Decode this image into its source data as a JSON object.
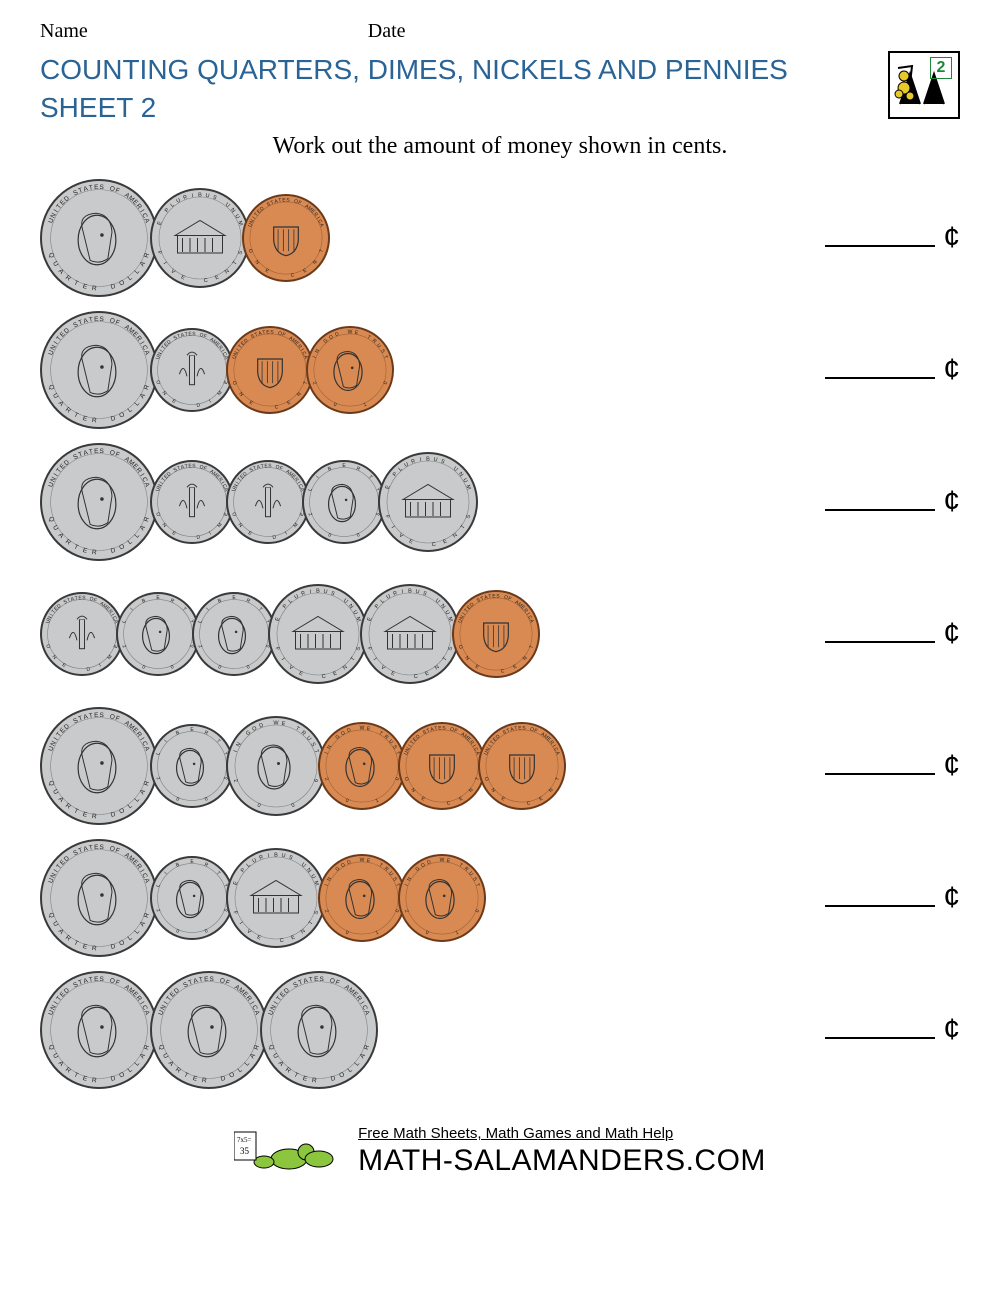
{
  "header": {
    "name_label": "Name",
    "date_label": "Date"
  },
  "title_line1": "COUNTING QUARTERS, DIMES, NICKELS AND PENNIES",
  "title_line2": "SHEET 2",
  "grade_badge": "2",
  "instructions": "Work out the amount of money shown in cents.",
  "cent_symbol": "¢",
  "coin_defs": {
    "quarter": {
      "diameter": 118,
      "color": "#c9cacb",
      "border": "#3a3a3a",
      "top_text": "UNITED STATES OF AMERICA",
      "bottom_text": "QUARTER DOLLAR",
      "face": "head"
    },
    "dime": {
      "diameter": 84,
      "color": "#c9cacb",
      "border": "#3a3a3a",
      "top_text": "UNITED STATES OF AMERICA",
      "bottom_text": "ONE DIME",
      "face": "torch"
    },
    "dime_head": {
      "diameter": 84,
      "color": "#c9cacb",
      "border": "#3a3a3a",
      "top_text": "LIBERTY",
      "bottom_text": "2005",
      "face": "head"
    },
    "nickel": {
      "diameter": 100,
      "color": "#c9cacb",
      "border": "#3a3a3a",
      "top_text": "E PLURIBUS UNUM",
      "bottom_text": "FIVE CENTS",
      "face": "building"
    },
    "nickel_head": {
      "diameter": 100,
      "color": "#c9cacb",
      "border": "#3a3a3a",
      "top_text": "IN GOD WE TRUST",
      "bottom_text": "2006",
      "face": "head"
    },
    "penny": {
      "diameter": 88,
      "color": "#d98a52",
      "border": "#6b3a1a",
      "top_text": "UNITED STATES OF AMERICA",
      "bottom_text": "ONE CENT",
      "face": "shield"
    },
    "penny_head": {
      "diameter": 88,
      "color": "#d98a52",
      "border": "#6b3a1a",
      "top_text": "IN GOD WE TRUST",
      "bottom_text": "2010",
      "face": "head"
    }
  },
  "rows": [
    {
      "coins": [
        "quarter",
        "nickel",
        "penny"
      ]
    },
    {
      "coins": [
        "quarter",
        "dime",
        "penny",
        "penny_head"
      ]
    },
    {
      "coins": [
        "quarter",
        "dime",
        "dime",
        "dime_head",
        "nickel"
      ]
    },
    {
      "coins": [
        "dime",
        "dime_head",
        "dime_head",
        "nickel",
        "nickel",
        "penny"
      ]
    },
    {
      "coins": [
        "quarter",
        "dime_head",
        "nickel_head",
        "penny_head",
        "penny",
        "penny"
      ]
    },
    {
      "coins": [
        "quarter",
        "dime_head",
        "nickel",
        "penny_head",
        "penny_head"
      ]
    },
    {
      "coins": [
        "quarter",
        "quarter",
        "quarter"
      ]
    }
  ],
  "footer": {
    "tagline": "Free Math Sheets, Math Games and Math Help",
    "site": "MATH-SALAMANDERS.COM"
  }
}
